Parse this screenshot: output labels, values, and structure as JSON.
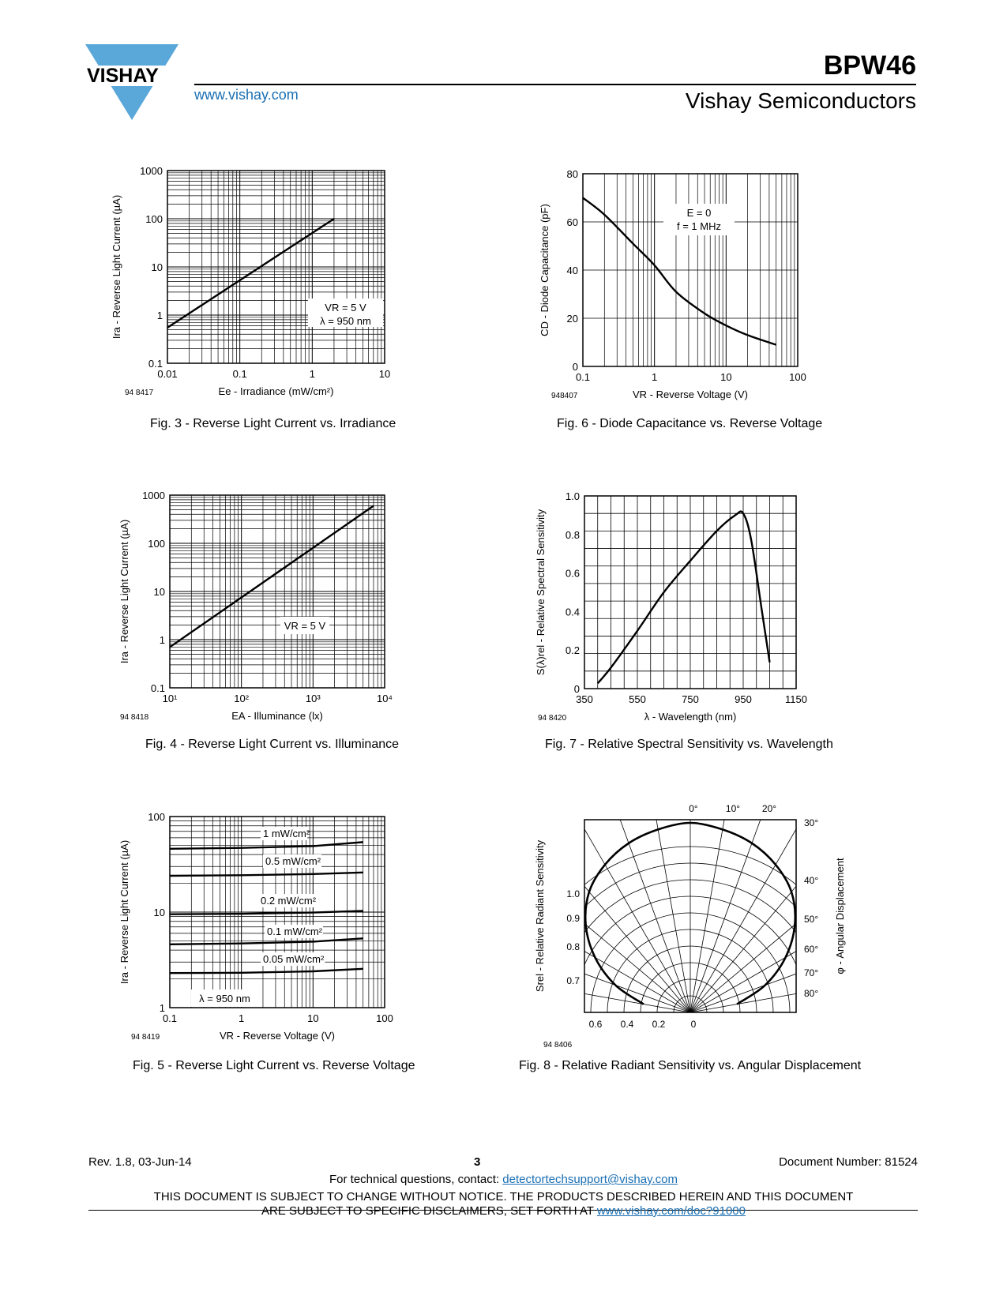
{
  "header": {
    "logo_text": "VISHAY",
    "website": "www.vishay.com",
    "part_number": "BPW46",
    "company": "Vishay Semiconductors"
  },
  "charts": {
    "fig3": {
      "code": "94 8417",
      "caption": "Fig. 3 - Reverse Light Current vs. Irradiance",
      "ylabel": "Ira - Reverse Light Current (µA)",
      "xlabel": "Ee - Irradiance (mW/cm²)",
      "annotation": [
        "VR = 5 V",
        "λ = 950 nm"
      ],
      "xticks": [
        "0.01",
        "0.1",
        "1",
        "10"
      ],
      "yticks": [
        "0.1",
        "1",
        "10",
        "100",
        "1000"
      ]
    },
    "fig6": {
      "code": "948407",
      "caption": "Fig. 6 - Diode Capacitance vs. Reverse Voltage",
      "ylabel": "CD - Diode Capacitance (pF)",
      "xlabel": "VR - Reverse Voltage (V)",
      "annotation": [
        "E = 0",
        "f = 1 MHz"
      ],
      "xticks": [
        "0.1",
        "1",
        "10",
        "100"
      ],
      "yticks": [
        "0",
        "20",
        "40",
        "60",
        "80"
      ]
    },
    "fig4": {
      "code": "94 8418",
      "caption": "Fig. 4 - Reverse Light Current vs. Illuminance",
      "ylabel": "Ira - Reverse Light Current (µA)",
      "xlabel": "EA - Illuminance (lx)",
      "annotation": [
        "VR = 5 V"
      ],
      "xticks": [
        "10¹",
        "10²",
        "10³",
        "10⁴"
      ],
      "yticks": [
        "0.1",
        "1",
        "10",
        "100",
        "1000"
      ]
    },
    "fig7": {
      "code": "94 8420",
      "caption": "Fig. 7 - Relative Spectral Sensitivity vs. Wavelength",
      "ylabel": "S(λ)rel - Relative Spectral Sensitivity",
      "xlabel": "λ - Wavelength (nm)",
      "xticks": [
        "350",
        "550",
        "750",
        "950",
        "1150"
      ],
      "yticks": [
        "0",
        "0.2",
        "0.4",
        "0.6",
        "0.8",
        "1.0"
      ]
    },
    "fig5": {
      "code": "94 8419",
      "caption": "Fig. 5 - Reverse Light Current vs. Reverse Voltage",
      "ylabel": "Ira - Reverse Light Current (µA)",
      "xlabel": "VR - Reverse Voltage (V)",
      "annotation": [
        "λ = 950 nm"
      ],
      "series_labels": [
        "1 mW/cm²",
        "0.5 mW/cm²",
        "0.2 mW/cm²",
        "0.1 mW/cm²",
        "0.05 mW/cm²"
      ],
      "xticks": [
        "0.1",
        "1",
        "10",
        "100"
      ],
      "yticks": [
        "1",
        "10",
        "100"
      ]
    },
    "fig8": {
      "code": "94 8406",
      "caption": "Fig. 8 - Relative Radiant Sensitivity vs. Angular Displacement",
      "ylabel": "Srel - Relative Radiant Sensitivity",
      "y2label": "φ - Angular Displacement",
      "angle_ticks": [
        "0°",
        "10°",
        "20°",
        "30°",
        "40°",
        "50°",
        "60°",
        "70°",
        "80°"
      ],
      "radial_ticks": [
        "1.0",
        "0.9",
        "0.8",
        "0.7"
      ],
      "bottom_ticks": [
        "0.6",
        "0.4",
        "0.2",
        "0"
      ]
    }
  },
  "chart_data": [
    {
      "type": "line",
      "title": "",
      "xlabel": "Ee - Irradiance (mW/cm²)",
      "ylabel": "Ira - Reverse Light Current (µA)",
      "xscale": "log",
      "yscale": "log",
      "xlim": [
        0.01,
        10
      ],
      "ylim": [
        0.1,
        1000
      ],
      "series": [
        {
          "x": [
            0.01,
            2
          ],
          "y": [
            0.55,
            100
          ]
        }
      ]
    },
    {
      "type": "line",
      "title": "",
      "xlabel": "VR - Reverse Voltage (V)",
      "ylabel": "CD - Diode Capacitance (pF)",
      "xscale": "log",
      "yscale": "linear",
      "xlim": [
        0.1,
        100
      ],
      "ylim": [
        0,
        80
      ],
      "series": [
        {
          "x": [
            0.1,
            0.2,
            0.5,
            1,
            2,
            5,
            10,
            20,
            50
          ],
          "y": [
            70,
            63,
            51,
            42,
            31,
            22,
            17,
            13,
            9
          ]
        }
      ]
    },
    {
      "type": "line",
      "title": "",
      "xlabel": "EA - Illuminance (lx)",
      "ylabel": "Ira - Reverse Light Current (µA)",
      "xscale": "log",
      "yscale": "log",
      "xlim": [
        10,
        10000
      ],
      "ylim": [
        0.1,
        1000
      ],
      "series": [
        {
          "x": [
            10,
            7000
          ],
          "y": [
            0.7,
            600
          ]
        }
      ]
    },
    {
      "type": "line",
      "title": "",
      "xlabel": "λ - Wavelength (nm)",
      "ylabel": "S(λ)rel - Relative Spectral Sensitivity",
      "xlim": [
        350,
        1150
      ],
      "ylim": [
        0,
        1.1
      ],
      "series": [
        {
          "x": [
            400,
            450,
            550,
            650,
            750,
            850,
            920,
            950,
            980,
            1020,
            1050
          ],
          "y": [
            0.03,
            0.12,
            0.33,
            0.55,
            0.73,
            0.9,
            0.99,
            1.0,
            0.85,
            0.45,
            0.15
          ]
        }
      ]
    },
    {
      "type": "line",
      "title": "",
      "xlabel": "VR - Reverse Voltage (V)",
      "ylabel": "Ira - Reverse Light Current (µA)",
      "xscale": "log",
      "yscale": "log",
      "xlim": [
        0.1,
        100
      ],
      "ylim": [
        1,
        100
      ],
      "series": [
        {
          "name": "1 mW/cm²",
          "x": [
            0.1,
            1,
            10,
            50
          ],
          "y": [
            46,
            47,
            49,
            54
          ]
        },
        {
          "name": "0.5 mW/cm²",
          "x": [
            0.1,
            1,
            10,
            50
          ],
          "y": [
            24,
            24.3,
            25,
            26
          ]
        },
        {
          "name": "0.2 mW/cm²",
          "x": [
            0.1,
            1,
            10,
            50
          ],
          "y": [
            9.5,
            9.6,
            9.9,
            10.3
          ]
        },
        {
          "name": "0.1 mW/cm²",
          "x": [
            0.1,
            1,
            10,
            50
          ],
          "y": [
            4.6,
            4.7,
            4.9,
            5.3
          ]
        },
        {
          "name": "0.05 mW/cm²",
          "x": [
            0.1,
            1,
            10,
            50
          ],
          "y": [
            2.3,
            2.32,
            2.4,
            2.55
          ]
        }
      ]
    },
    {
      "type": "line",
      "title": "",
      "xlabel": "",
      "ylabel": "Srel - Relative Radiant Sensitivity",
      "polar": true,
      "angle_range_deg": [
        -90,
        90
      ],
      "series": [
        {
          "x": [
            0,
            10,
            20,
            30,
            40,
            50,
            60,
            70,
            80
          ],
          "y": [
            1.0,
            0.98,
            0.95,
            0.9,
            0.83,
            0.72,
            0.58,
            0.42,
            0.25
          ]
        }
      ]
    }
  ],
  "footer": {
    "revision": "Rev. 1.8, 03-Jun-14",
    "page": "3",
    "document": "Document Number: 81524",
    "contact_prefix": "For technical questions, contact: ",
    "contact_email": "detectortechsupport@vishay.com",
    "disclaimer_line1": "THIS DOCUMENT IS SUBJECT TO CHANGE WITHOUT NOTICE. THE PRODUCTS DESCRIBED HEREIN AND THIS DOCUMENT",
    "disclaimer_line2_prefix": "ARE SUBJECT TO SPECIFIC DISCLAIMERS, SET FORTH AT ",
    "disclaimer_link": "www.vishay.com/doc?91000"
  },
  "colors": {
    "accent": "#5aa7d9",
    "link": "#1a6fb3"
  }
}
